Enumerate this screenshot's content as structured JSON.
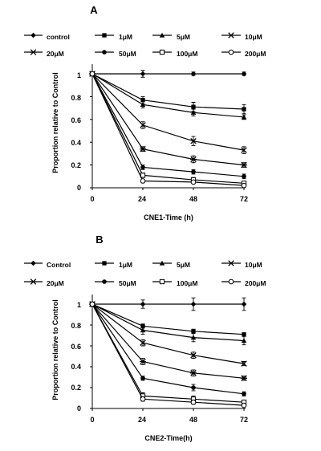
{
  "chart_data": [
    {
      "type": "line",
      "panel_label": "A",
      "xlabel": "CNE1-Time (h)",
      "ylabel": "Proportion relative to Control",
      "x": [
        0,
        24,
        48,
        72
      ],
      "xticks": [
        "0",
        "24",
        "48",
        "72"
      ],
      "ylim": [
        0,
        1.1
      ],
      "yticks": [
        "0",
        "0.2",
        "0.4",
        "0.6",
        "0.8",
        "1"
      ],
      "grid": false,
      "legend_position": "top",
      "series": [
        {
          "name": "control",
          "marker": "diamond",
          "values": [
            1,
            1.0,
            1.0,
            1.0
          ],
          "errors": [
            0,
            0.03,
            0.015,
            0.015
          ]
        },
        {
          "name": "1μM",
          "marker": "square",
          "values": [
            1,
            0.77,
            0.71,
            0.69
          ],
          "errors": [
            0,
            0.03,
            0.04,
            0.04
          ]
        },
        {
          "name": "5μM",
          "marker": "triangle",
          "values": [
            1,
            0.73,
            0.66,
            0.62
          ],
          "errors": [
            0,
            0.03,
            0.03,
            0.02
          ]
        },
        {
          "name": "10μM",
          "marker": "x",
          "values": [
            1,
            0.55,
            0.41,
            0.33
          ],
          "errors": [
            0,
            0.03,
            0.04,
            0.03
          ]
        },
        {
          "name": "20μM",
          "marker": "asterisk",
          "values": [
            1,
            0.34,
            0.25,
            0.2
          ],
          "errors": [
            0,
            0.02,
            0.03,
            0.02
          ]
        },
        {
          "name": "50μM",
          "marker": "circle-filled",
          "values": [
            1,
            0.18,
            0.14,
            0.1
          ],
          "errors": [
            0,
            0.02,
            0.02,
            0.02
          ]
        },
        {
          "name": "100μM",
          "marker": "square-open",
          "values": [
            1,
            0.11,
            0.07,
            0.04
          ],
          "errors": [
            0,
            0.02,
            0.02,
            0.01
          ]
        },
        {
          "name": "200μM",
          "marker": "circle-open",
          "values": [
            1,
            0.06,
            0.05,
            0.02
          ],
          "errors": [
            0,
            0.01,
            0.01,
            0.01
          ]
        }
      ]
    },
    {
      "type": "line",
      "panel_label": "B",
      "xlabel": "CNE2-Time(h)",
      "ylabel": "Proportion relative to Control",
      "x": [
        0,
        24,
        48,
        72
      ],
      "xticks": [
        "0",
        "24",
        "48",
        "72"
      ],
      "ylim": [
        0,
        1.1
      ],
      "yticks": [
        "0",
        "0.2",
        "0.4",
        "0.6",
        "0.8",
        "1"
      ],
      "grid": false,
      "legend_position": "top",
      "series": [
        {
          "name": "Control",
          "marker": "diamond",
          "values": [
            1,
            1.0,
            1.0,
            1.0
          ],
          "errors": [
            0,
            0.04,
            0.06,
            0.06
          ]
        },
        {
          "name": "1μM",
          "marker": "square",
          "values": [
            1,
            0.79,
            0.74,
            0.71
          ],
          "errors": [
            0,
            0.02,
            0.02,
            0.01
          ]
        },
        {
          "name": "5μM",
          "marker": "triangle",
          "values": [
            1,
            0.75,
            0.68,
            0.65
          ],
          "errors": [
            0,
            0.04,
            0.04,
            0.04
          ]
        },
        {
          "name": "10μM",
          "marker": "x",
          "values": [
            1,
            0.63,
            0.51,
            0.43
          ],
          "errors": [
            0,
            0.03,
            0.03,
            0.02
          ]
        },
        {
          "name": "20μM",
          "marker": "asterisk",
          "values": [
            1,
            0.45,
            0.34,
            0.29
          ],
          "errors": [
            0,
            0.03,
            0.03,
            0.02
          ]
        },
        {
          "name": "50μM",
          "marker": "circle-filled",
          "values": [
            1,
            0.29,
            0.2,
            0.14
          ],
          "errors": [
            0,
            0.02,
            0.03,
            0.02
          ]
        },
        {
          "name": "100μM",
          "marker": "square-open",
          "values": [
            1,
            0.12,
            0.09,
            0.06
          ],
          "errors": [
            0,
            0.03,
            0.03,
            0.02
          ]
        },
        {
          "name": "200μM",
          "marker": "circle-open",
          "values": [
            1,
            0.09,
            0.06,
            0.03
          ],
          "errors": [
            0,
            0.02,
            0.02,
            0.01
          ]
        }
      ]
    }
  ]
}
